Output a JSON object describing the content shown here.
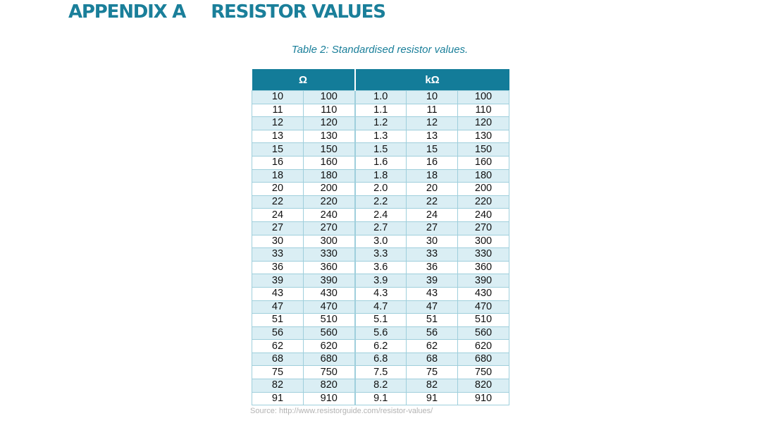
{
  "heading": {
    "label": "APPENDIX A",
    "title": "RESISTOR VALUES"
  },
  "table": {
    "caption": "Table 2: Standardised resistor values.",
    "header_groups": [
      {
        "label": "Ω",
        "span": 2
      },
      {
        "label": "kΩ",
        "span": 3
      }
    ],
    "rows": [
      [
        "10",
        "100",
        "1.0",
        "10",
        "100"
      ],
      [
        "11",
        "110",
        "1.1",
        "11",
        "110"
      ],
      [
        "12",
        "120",
        "1.2",
        "12",
        "120"
      ],
      [
        "13",
        "130",
        "1.3",
        "13",
        "130"
      ],
      [
        "15",
        "150",
        "1.5",
        "15",
        "150"
      ],
      [
        "16",
        "160",
        "1.6",
        "16",
        "160"
      ],
      [
        "18",
        "180",
        "1.8",
        "18",
        "180"
      ],
      [
        "20",
        "200",
        "2.0",
        "20",
        "200"
      ],
      [
        "22",
        "220",
        "2.2",
        "22",
        "220"
      ],
      [
        "24",
        "240",
        "2.4",
        "24",
        "240"
      ],
      [
        "27",
        "270",
        "2.7",
        "27",
        "270"
      ],
      [
        "30",
        "300",
        "3.0",
        "30",
        "300"
      ],
      [
        "33",
        "330",
        "3.3",
        "33",
        "330"
      ],
      [
        "36",
        "360",
        "3.6",
        "36",
        "360"
      ],
      [
        "39",
        "390",
        "3.9",
        "39",
        "390"
      ],
      [
        "43",
        "430",
        "4.3",
        "43",
        "430"
      ],
      [
        "47",
        "470",
        "4.7",
        "47",
        "470"
      ],
      [
        "51",
        "510",
        "5.1",
        "51",
        "510"
      ],
      [
        "56",
        "560",
        "5.6",
        "56",
        "560"
      ],
      [
        "62",
        "620",
        "6.2",
        "62",
        "620"
      ],
      [
        "68",
        "680",
        "6.8",
        "68",
        "680"
      ],
      [
        "75",
        "750",
        "7.5",
        "75",
        "750"
      ],
      [
        "82",
        "820",
        "8.2",
        "82",
        "820"
      ],
      [
        "91",
        "910",
        "9.1",
        "91",
        "910"
      ]
    ],
    "source": "Source: http://www.resistorguide.com/resistor-values/"
  },
  "colors": {
    "accent": "#1a7f9a",
    "header_bg": "#137c99",
    "stripe": "#daeef4",
    "grid": "#9fcfdc",
    "source_text": "#b3b3b3"
  }
}
